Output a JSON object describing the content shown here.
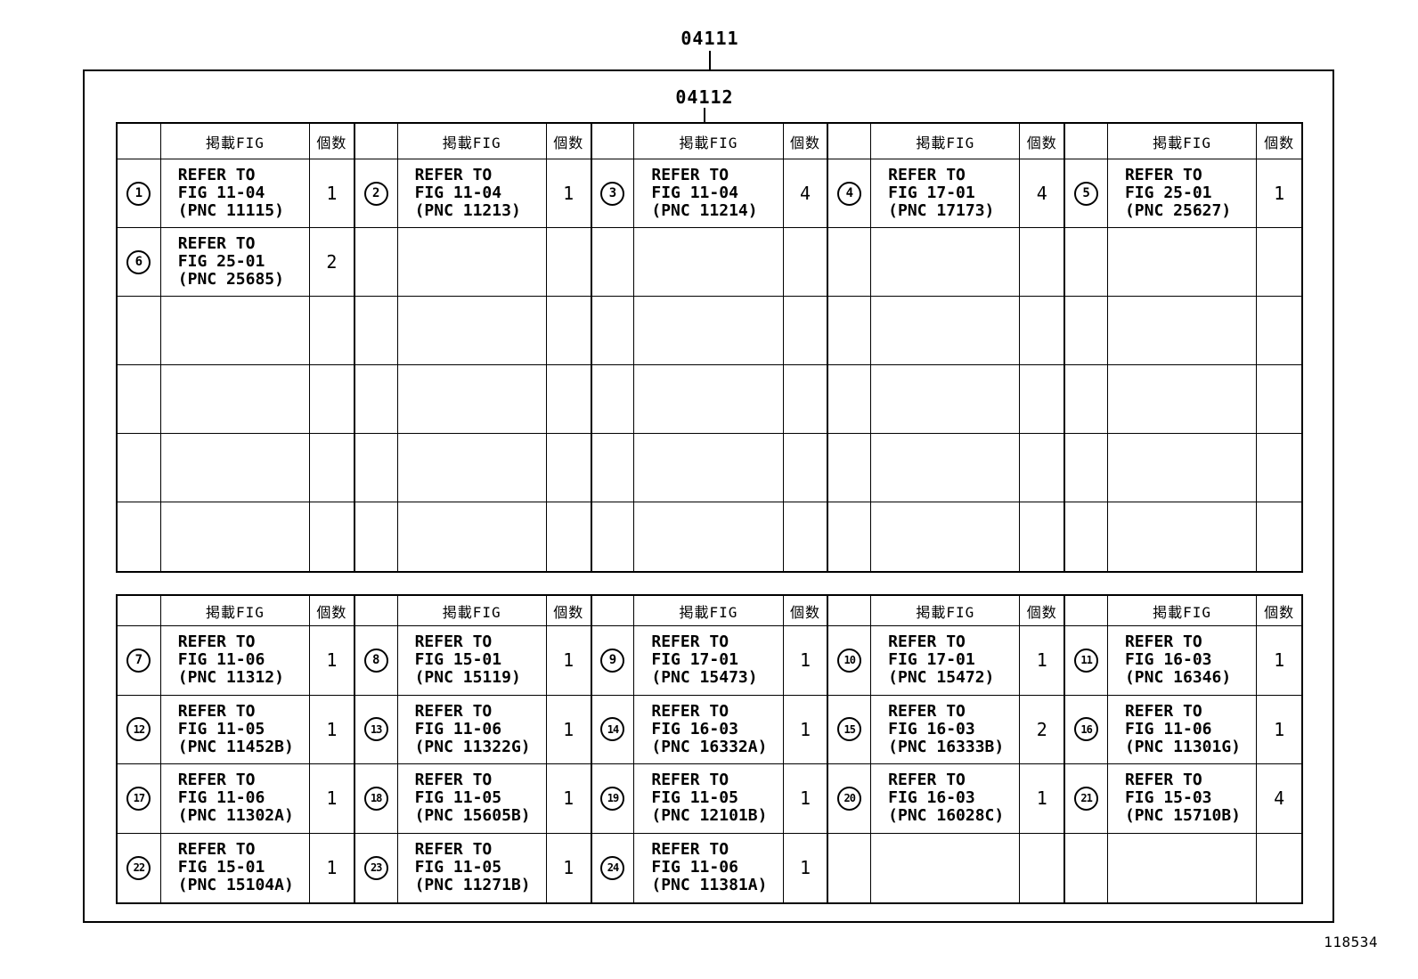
{
  "codes": {
    "outer": "04111",
    "inner": "04112",
    "doc_number": "118534"
  },
  "labels": {
    "fig_header": "掲載FIG",
    "qty_header": "個数",
    "refer_prefix": "REFER TO"
  },
  "colors": {
    "line": "#000000",
    "background": "#ffffff"
  },
  "table_upper": {
    "body_rows": 6,
    "entries": [
      {
        "no": "1",
        "fig": "FIG 11-04",
        "pnc": "(PNC 11115)",
        "qty": "1"
      },
      {
        "no": "2",
        "fig": "FIG 11-04",
        "pnc": "(PNC 11213)",
        "qty": "1"
      },
      {
        "no": "3",
        "fig": "FIG 11-04",
        "pnc": "(PNC 11214)",
        "qty": "4"
      },
      {
        "no": "4",
        "fig": "FIG 17-01",
        "pnc": "(PNC 17173)",
        "qty": "4"
      },
      {
        "no": "5",
        "fig": "FIG 25-01",
        "pnc": "(PNC 25627)",
        "qty": "1"
      },
      {
        "no": "6",
        "fig": "FIG 25-01",
        "pnc": "(PNC 25685)",
        "qty": "2"
      }
    ]
  },
  "table_lower": {
    "body_rows": 4,
    "entries": [
      {
        "no": "7",
        "fig": "FIG 11-06",
        "pnc": "(PNC 11312)",
        "qty": "1"
      },
      {
        "no": "8",
        "fig": "FIG 15-01",
        "pnc": "(PNC 15119)",
        "qty": "1"
      },
      {
        "no": "9",
        "fig": "FIG 17-01",
        "pnc": "(PNC 15473)",
        "qty": "1"
      },
      {
        "no": "10",
        "fig": "FIG 17-01",
        "pnc": "(PNC 15472)",
        "qty": "1"
      },
      {
        "no": "11",
        "fig": "FIG 16-03",
        "pnc": "(PNC 16346)",
        "qty": "1"
      },
      {
        "no": "12",
        "fig": "FIG 11-05",
        "pnc": "(PNC 11452B)",
        "qty": "1"
      },
      {
        "no": "13",
        "fig": "FIG 11-06",
        "pnc": "(PNC 11322G)",
        "qty": "1"
      },
      {
        "no": "14",
        "fig": "FIG 16-03",
        "pnc": "(PNC 16332A)",
        "qty": "1"
      },
      {
        "no": "15",
        "fig": "FIG 16-03",
        "pnc": "(PNC 16333B)",
        "qty": "2"
      },
      {
        "no": "16",
        "fig": "FIG 11-06",
        "pnc": "(PNC 11301G)",
        "qty": "1"
      },
      {
        "no": "17",
        "fig": "FIG 11-06",
        "pnc": "(PNC 11302A)",
        "qty": "1"
      },
      {
        "no": "18",
        "fig": "FIG 11-05",
        "pnc": "(PNC 15605B)",
        "qty": "1"
      },
      {
        "no": "19",
        "fig": "FIG 11-05",
        "pnc": "(PNC 12101B)",
        "qty": "1"
      },
      {
        "no": "20",
        "fig": "FIG 16-03",
        "pnc": "(PNC 16028C)",
        "qty": "1"
      },
      {
        "no": "21",
        "fig": "FIG 15-03",
        "pnc": "(PNC 15710B)",
        "qty": "4"
      },
      {
        "no": "22",
        "fig": "FIG 15-01",
        "pnc": "(PNC 15104A)",
        "qty": "1"
      },
      {
        "no": "23",
        "fig": "FIG 11-05",
        "pnc": "(PNC 11271B)",
        "qty": "1"
      },
      {
        "no": "24",
        "fig": "FIG 11-06",
        "pnc": "(PNC 11381A)",
        "qty": "1"
      }
    ]
  }
}
